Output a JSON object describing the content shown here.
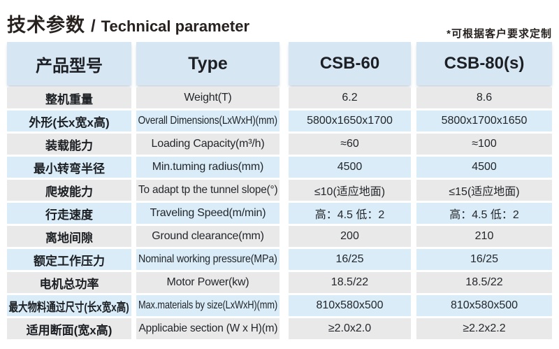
{
  "page": {
    "title_zh": "技术参数",
    "title_sep": "/",
    "title_en": "Technical parameter",
    "customization_note": "*可根据客户要求定制"
  },
  "table": {
    "header": {
      "product_model": "产品型号",
      "type": "Type",
      "csb60": "CSB-60",
      "csb80": "CSB-80(s)"
    },
    "rows": [
      {
        "zh": "整机重量",
        "en": "Weight(T)",
        "csb60": "6.2",
        "csb80": "8.6"
      },
      {
        "zh": "外形(长x宽x高)",
        "en": "Overall Dimensions(LxWxH)(mm)",
        "csb60": "5800x1650x1700",
        "csb80": "5800x1700x1650"
      },
      {
        "zh": "装载能力",
        "en": "Loading Capacity(m³/h)",
        "csb60": "≈60",
        "csb80": "≈100"
      },
      {
        "zh": "最小转弯半径",
        "en": "Min.tuming radius(mm)",
        "csb60": "4500",
        "csb80": "4500"
      },
      {
        "zh": "爬坡能力",
        "en": "To adapt tp the tunnel slope(°)",
        "csb60": "≤10(适应地面)",
        "csb80": "≤15(适应地面)"
      },
      {
        "zh": "行走速度",
        "en": "Traveling Speed(m/min)",
        "csb60": "高：4.5 低：2",
        "csb80": "高：4.5 低：2"
      },
      {
        "zh": "离地间隙",
        "en": "Ground clearance(mm)",
        "csb60": "200",
        "csb80": "210"
      },
      {
        "zh": "额定工作压力",
        "en": "Nominal working pressure(MPa)",
        "csb60": "16/25",
        "csb80": "16/25"
      },
      {
        "zh": "电机总功率",
        "en": "Motor Power(kw)",
        "csb60": "18.5/22",
        "csb80": "18.5/22"
      },
      {
        "zh": "最大物料通过尺寸(长x宽x高)",
        "en": "Max.materials by size(LxWxH)(mm)",
        "csb60": "810x580x500",
        "csb80": "810x580x500"
      },
      {
        "zh": "适用断面(宽x高)",
        "en": "Applicabie section (W x H)(m)",
        "csb60": "≥2.0x2.0",
        "csb80": "≥2.2x2.2"
      }
    ]
  },
  "colors": {
    "header_blue": "#d7e6f3",
    "row_blue": "#d9ecf8",
    "row_gray": "#e9e9e9",
    "text_dark": "#24272b",
    "title_dark": "#272220"
  }
}
